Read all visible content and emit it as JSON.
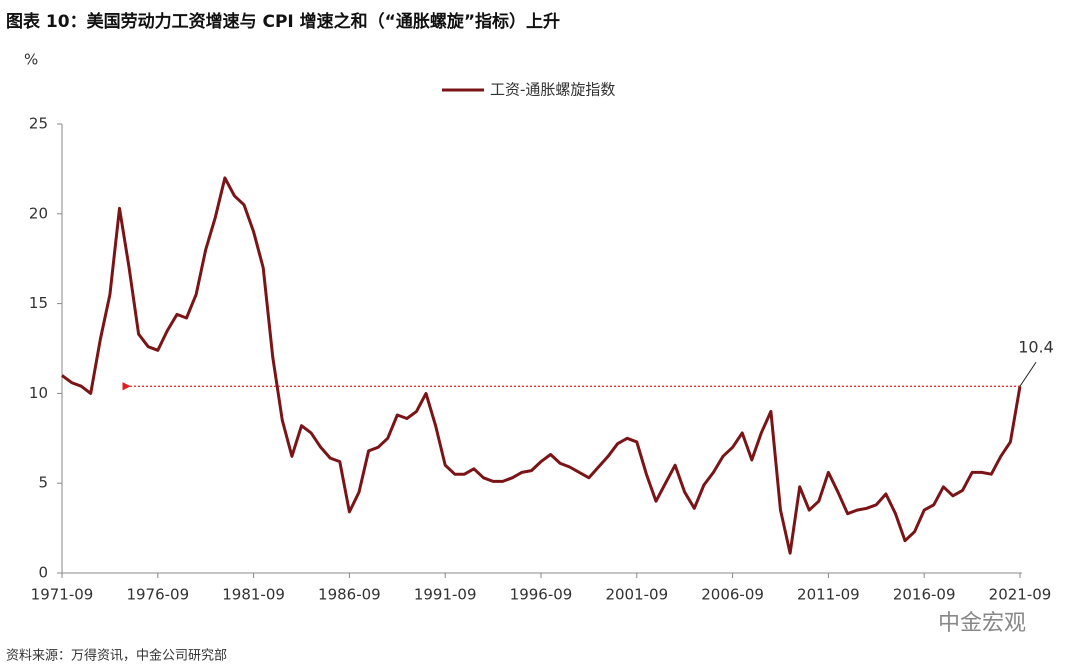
{
  "chart_data": {
    "type": "line",
    "title": "图表 10：美国劳动力工资增速与 CPI 增速之和（“通胀螺旋”指标）上升",
    "y_label": "%",
    "source": "资料来源：万得资讯，中金公司研究部",
    "watermark": "中金宏观",
    "legend_position": "top",
    "categories": [
      "1971-09",
      null,
      null,
      null,
      null,
      null,
      null,
      null,
      null,
      null,
      "1976-09",
      null,
      null,
      null,
      null,
      null,
      null,
      null,
      null,
      null,
      "1981-09",
      null,
      null,
      null,
      null,
      null,
      null,
      null,
      null,
      null,
      "1986-09",
      null,
      null,
      null,
      null,
      null,
      null,
      null,
      null,
      null,
      "1991-09",
      null,
      null,
      null,
      null,
      null,
      null,
      null,
      null,
      null,
      "1996-09",
      null,
      null,
      null,
      null,
      null,
      null,
      null,
      null,
      null,
      "2001-09",
      null,
      null,
      null,
      null,
      null,
      null,
      null,
      null,
      null,
      "2006-09",
      null,
      null,
      null,
      null,
      null,
      null,
      null,
      null,
      null,
      "2011-09",
      null,
      null,
      null,
      null,
      null,
      null,
      null,
      null,
      null,
      "2016-09",
      null,
      null,
      null,
      null,
      null,
      null,
      null,
      null,
      null,
      "2021-09"
    ],
    "series": [
      {
        "name": "工资-通胀螺旋指数",
        "color": "#7b1416",
        "values": [
          11.0,
          10.6,
          10.4,
          10.0,
          13.0,
          15.5,
          20.3,
          17.0,
          13.3,
          12.6,
          12.4,
          13.5,
          14.4,
          14.2,
          15.5,
          18.0,
          19.8,
          22.0,
          21.0,
          20.5,
          19.0,
          17.0,
          12.0,
          8.5,
          6.5,
          8.2,
          7.8,
          7.0,
          6.4,
          6.2,
          3.4,
          4.5,
          6.8,
          7.0,
          7.5,
          8.8,
          8.6,
          9.0,
          10.0,
          8.2,
          6.0,
          5.5,
          5.5,
          5.8,
          5.3,
          5.1,
          5.1,
          5.3,
          5.6,
          5.7,
          6.2,
          6.6,
          6.1,
          5.9,
          5.6,
          5.3,
          5.9,
          6.5,
          7.2,
          7.5,
          7.3,
          5.5,
          4.0,
          5.0,
          6.0,
          4.5,
          3.6,
          4.9,
          5.6,
          6.5,
          7.0,
          7.8,
          6.3,
          7.8,
          9.0,
          3.5,
          1.1,
          4.8,
          3.5,
          4.0,
          5.6,
          4.5,
          3.3,
          3.5,
          3.6,
          3.8,
          4.4,
          3.3,
          1.8,
          2.3,
          3.5,
          3.8,
          4.8,
          4.3,
          4.6,
          5.6,
          5.6,
          5.5,
          6.5,
          7.3,
          10.4
        ]
      }
    ],
    "ylim": [
      0,
      25
    ],
    "yticks": [
      0,
      5,
      10,
      15,
      20,
      25
    ],
    "grid": false
  }
}
